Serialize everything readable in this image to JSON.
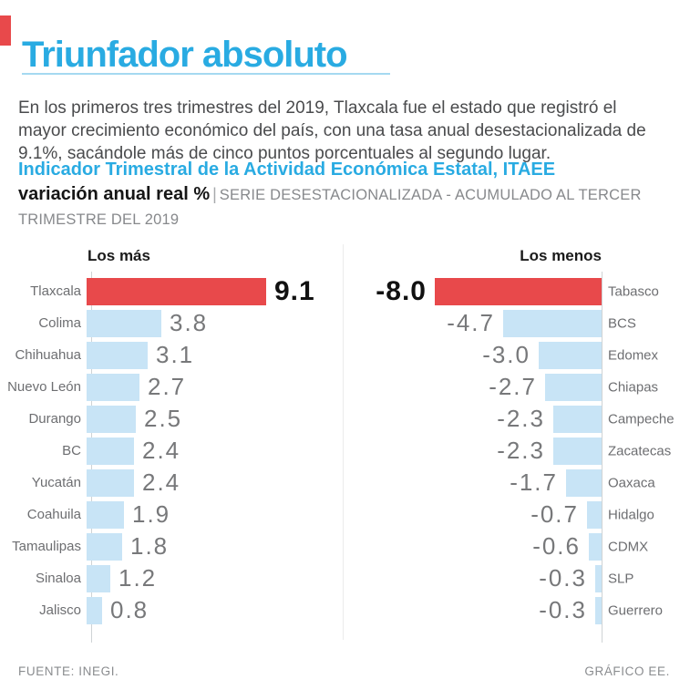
{
  "colors": {
    "cyan": "#29abe2",
    "red": "#e8494b",
    "light_blue": "#c8e4f6"
  },
  "header": {
    "title": "Triunfador absoluto",
    "intro": "En los primeros tres trimestres del 2019, Tlaxcala fue el estado que registró el mayor crecimiento económico del país, con una tasa anual desestacionalizada de 9.1%, sacándole más de cinco puntos porcentuales al segundo lugar."
  },
  "subtitle": {
    "indicator": "Indicador Trimestral de la Actividad Económica Estatal, ITAEE",
    "variation": "variación anual real %",
    "separator": "|",
    "note": "SERIE DESESTACIONALIZADA - ACUMULADO AL TERCER TRIMESTRE DEL 2019"
  },
  "chart_data": {
    "type": "bar",
    "orientation": "horizontal",
    "unit": "%",
    "panels": [
      {
        "title": "Los más",
        "side": "left",
        "categories": [
          "Tlaxcala",
          "Colima",
          "Chihuahua",
          "Nuevo León",
          "Durango",
          "BC",
          "Yucatán",
          "Coahuila",
          "Tamaulipas",
          "Sinaloa",
          "Jalisco"
        ],
        "values": [
          9.1,
          3.8,
          3.1,
          2.7,
          2.5,
          2.4,
          2.4,
          1.9,
          1.8,
          1.2,
          0.8
        ],
        "highlight_index": 0,
        "xlim": [
          0,
          10
        ]
      },
      {
        "title": "Los menos",
        "side": "right",
        "categories": [
          "Tabasco",
          "BCS",
          "Edomex",
          "Chiapas",
          "Campeche",
          "Zacatecas",
          "Oaxaca",
          "Hidalgo",
          "CDMX",
          "SLP",
          "Guerrero"
        ],
        "values": [
          -8.0,
          -4.7,
          -3.0,
          -2.7,
          -2.3,
          -2.3,
          -1.7,
          -0.7,
          -0.6,
          -0.3,
          -0.3
        ],
        "highlight_index": 0,
        "xlim": [
          -8.5,
          0
        ]
      }
    ]
  },
  "footer": {
    "source": "FUENTE: INEGI.",
    "credit": "GRÁFICO EE."
  }
}
